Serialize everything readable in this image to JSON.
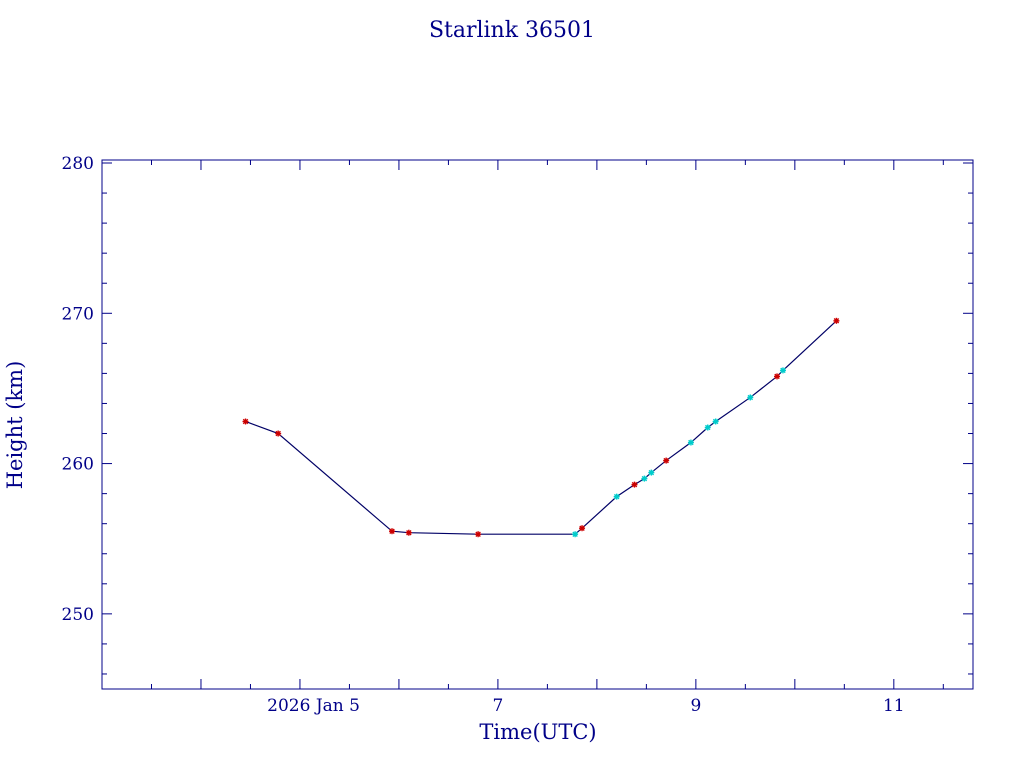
{
  "chart_data": {
    "type": "line",
    "title": "Starlink 36501",
    "xlabel": "Time(UTC)",
    "ylabel": "Height (km)",
    "x_unit": "days (January 2026)",
    "xlim": [
      3,
      11.8
    ],
    "ylim": [
      245,
      280.2
    ],
    "x_ticks": [
      {
        "value": 5,
        "label": "2026 Jan  5"
      },
      {
        "value": 7,
        "label": "7"
      },
      {
        "value": 9,
        "label": "9"
      },
      {
        "value": 11,
        "label": "11"
      }
    ],
    "y_ticks": [
      {
        "value": 250,
        "label": "250"
      },
      {
        "value": 260,
        "label": "260"
      },
      {
        "value": 270,
        "label": "270"
      },
      {
        "value": 280,
        "label": "280"
      }
    ],
    "line": {
      "x": [
        4.45,
        4.78,
        5.93,
        6.1,
        6.8,
        7.78,
        7.85,
        8.2,
        8.38,
        8.48,
        8.55,
        8.7,
        8.95,
        9.12,
        9.2,
        9.55,
        9.82,
        9.88,
        10.42
      ],
      "y": [
        262.8,
        262.0,
        255.5,
        255.4,
        255.3,
        255.3,
        255.7,
        257.8,
        258.6,
        259.0,
        259.4,
        260.2,
        261.4,
        262.4,
        262.8,
        264.4,
        265.8,
        266.2,
        269.5
      ]
    },
    "series": [
      {
        "marker_color": "#cc0000",
        "x": [
          4.45,
          4.78,
          5.93,
          6.1,
          6.8,
          7.85,
          8.38,
          8.7,
          9.82,
          10.42
        ],
        "y": [
          262.8,
          262.0,
          255.5,
          255.4,
          255.3,
          255.7,
          258.6,
          260.2,
          265.8,
          269.5
        ]
      },
      {
        "marker_color": "#00cccc",
        "x": [
          7.78,
          8.2,
          8.48,
          8.55,
          8.95,
          9.12,
          9.2,
          9.55,
          9.88
        ],
        "y": [
          255.3,
          257.8,
          259.0,
          259.4,
          261.4,
          262.4,
          262.8,
          264.4,
          266.2
        ]
      }
    ],
    "grid": false,
    "legend": "none",
    "colors": {
      "axes": "#000088",
      "text": "#000088",
      "line": "#000066"
    }
  }
}
